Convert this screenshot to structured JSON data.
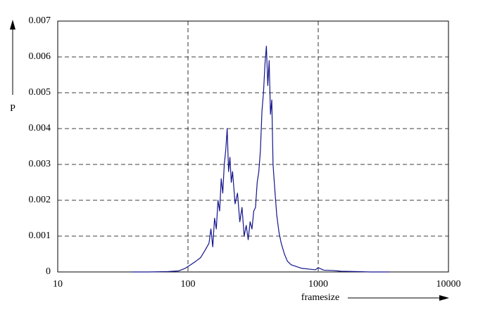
{
  "chart_data": {
    "type": "line",
    "xlabel": "framesize",
    "ylabel": "P",
    "xscale": "log",
    "grid": true,
    "xlim": [
      10,
      10000
    ],
    "xticks": [
      10,
      100,
      1000,
      10000
    ],
    "ylim": [
      0,
      0.007
    ],
    "yticks": [
      0,
      0.001,
      0.002,
      0.003,
      0.004,
      0.005,
      0.006,
      0.007
    ],
    "x": [
      37,
      50,
      70,
      85,
      95,
      105,
      115,
      125,
      135,
      145,
      150,
      155,
      160,
      165,
      170,
      175,
      180,
      185,
      190,
      195,
      200,
      205,
      210,
      215,
      220,
      230,
      240,
      250,
      260,
      270,
      280,
      290,
      300,
      310,
      320,
      330,
      340,
      350,
      360,
      370,
      380,
      390,
      400,
      410,
      420,
      430,
      440,
      450,
      460,
      480,
      500,
      520,
      550,
      580,
      620,
      680,
      750,
      850,
      950,
      1000,
      1100,
      1300,
      1500,
      2000,
      2500,
      3500
    ],
    "series": [
      {
        "color": "#14148c",
        "values": [
          0,
          0,
          1e-05,
          3e-05,
          0.0001,
          0.0002,
          0.0003,
          0.0004,
          0.0006,
          0.0008,
          0.0012,
          0.0007,
          0.0015,
          0.0012,
          0.002,
          0.0017,
          0.0026,
          0.0022,
          0.003,
          0.0034,
          0.004,
          0.0028,
          0.0032,
          0.0025,
          0.0028,
          0.0019,
          0.0022,
          0.0014,
          0.0018,
          0.001,
          0.0013,
          0.0009,
          0.0014,
          0.0012,
          0.0017,
          0.0018,
          0.0025,
          0.0028,
          0.0034,
          0.0045,
          0.005,
          0.0058,
          0.0063,
          0.0052,
          0.0059,
          0.0044,
          0.0048,
          0.003,
          0.0025,
          0.0016,
          0.0011,
          0.0008,
          0.0005,
          0.0003,
          0.0002,
          0.00015,
          0.0001,
          8e-05,
          6e-05,
          0.00012,
          5e-05,
          4e-05,
          2e-05,
          1e-05,
          0,
          0
        ]
      }
    ]
  }
}
